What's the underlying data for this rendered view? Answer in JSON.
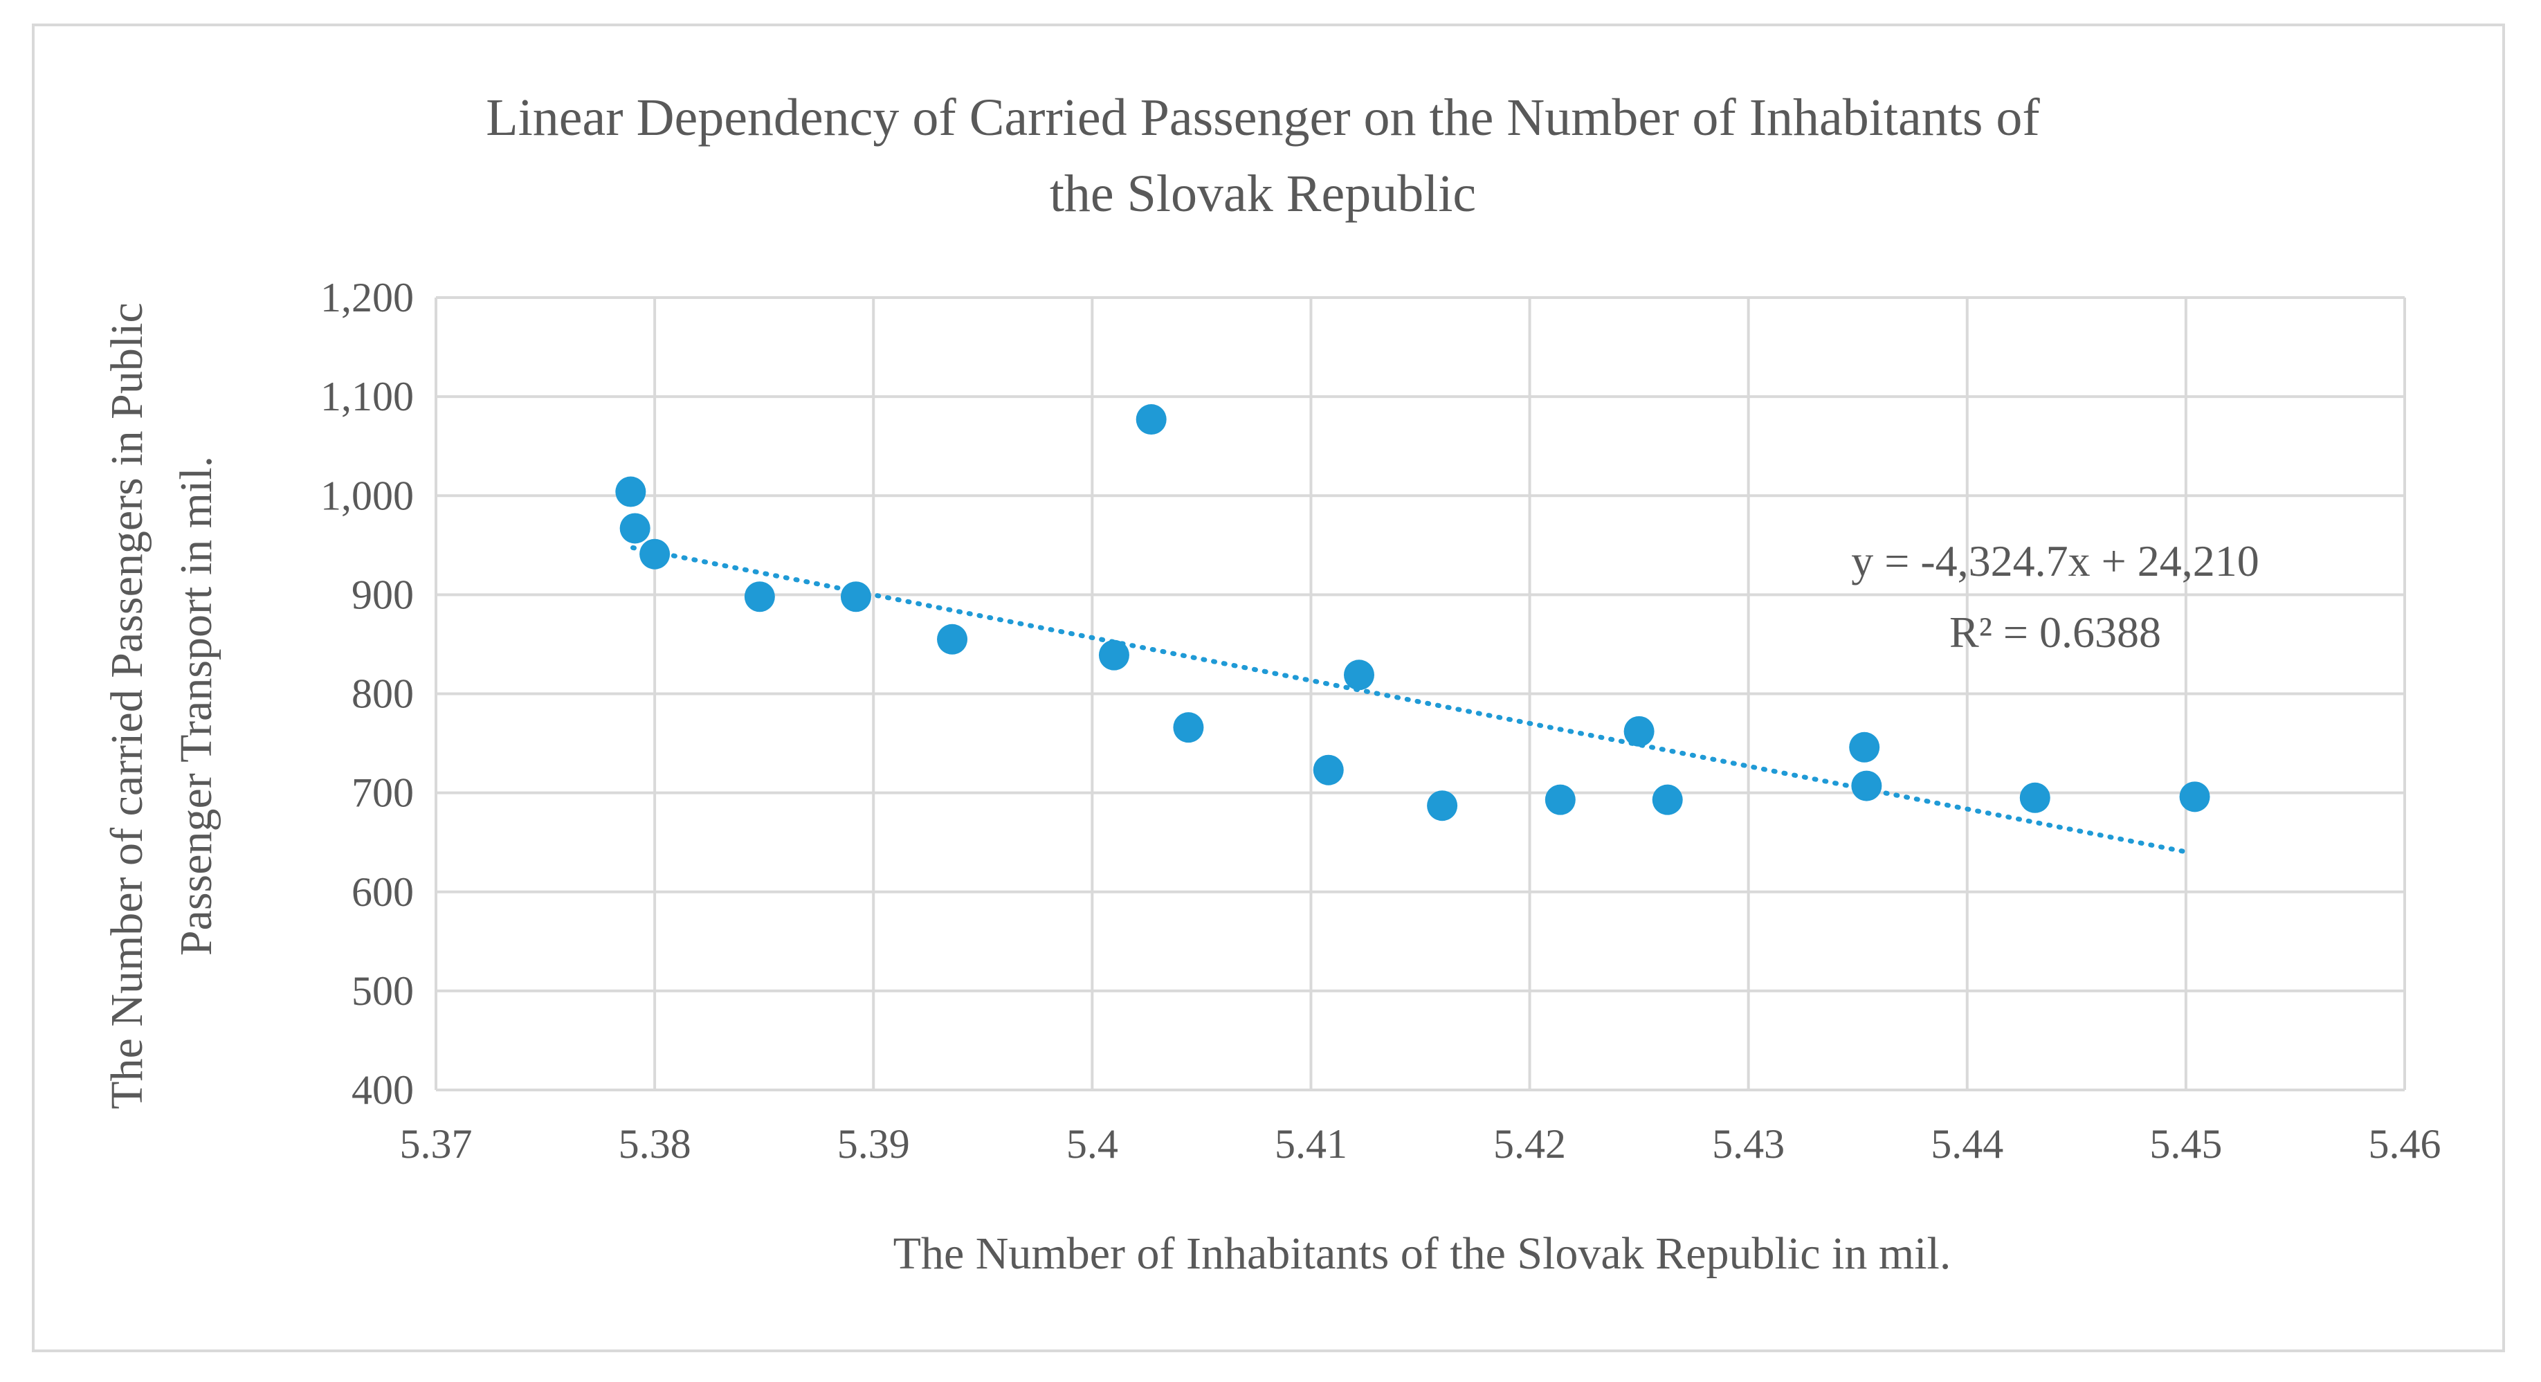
{
  "chart_data": {
    "type": "scatter",
    "title_lines": [
      "Linear Dependency of Carried Passenger on the Number of Inhabitants of",
      "the Slovak Republic"
    ],
    "xlabel": "The Number of Inhabitants of the Slovak Republic in mil.",
    "ylabel_lines": [
      "The Number of carried Passengers in Public",
      "Passenger Transport in mil."
    ],
    "xlim": [
      5.37,
      5.46
    ],
    "ylim": [
      400,
      1200
    ],
    "x_ticks": [
      5.37,
      5.38,
      5.39,
      5.4,
      5.41,
      5.42,
      5.43,
      5.44,
      5.45,
      5.46
    ],
    "x_tick_labels": [
      "5.37",
      "5.38",
      "5.39",
      "5.4",
      "5.41",
      "5.42",
      "5.43",
      "5.44",
      "5.45",
      "5.46"
    ],
    "y_ticks": [
      400,
      500,
      600,
      700,
      800,
      900,
      1000,
      1100,
      1200
    ],
    "y_tick_labels": [
      "400",
      "500",
      "600",
      "700",
      "800",
      "900",
      "1,000",
      "1,100",
      "1,200"
    ],
    "grid": true,
    "series": [
      {
        "name": "Carried passengers",
        "color": "#1f9ad6",
        "points": [
          {
            "x": 5.3789,
            "y": 1004
          },
          {
            "x": 5.3791,
            "y": 967
          },
          {
            "x": 5.38,
            "y": 941
          },
          {
            "x": 5.3848,
            "y": 898
          },
          {
            "x": 5.3892,
            "y": 898
          },
          {
            "x": 5.3936,
            "y": 855
          },
          {
            "x": 5.401,
            "y": 839
          },
          {
            "x": 5.4027,
            "y": 1077
          },
          {
            "x": 5.4044,
            "y": 766
          },
          {
            "x": 5.4108,
            "y": 723
          },
          {
            "x": 5.4122,
            "y": 819
          },
          {
            "x": 5.416,
            "y": 687
          },
          {
            "x": 5.4214,
            "y": 693
          },
          {
            "x": 5.425,
            "y": 762
          },
          {
            "x": 5.4263,
            "y": 693
          },
          {
            "x": 5.4353,
            "y": 746
          },
          {
            "x": 5.4354,
            "y": 707
          },
          {
            "x": 5.4431,
            "y": 695
          },
          {
            "x": 5.4504,
            "y": 696
          }
        ]
      }
    ],
    "trendline": {
      "type": "linear",
      "slope": -4324.7,
      "intercept": 24210,
      "x_range": [
        5.379,
        5.45
      ],
      "color": "#1f9ad6",
      "equation_label": "y = -4,324.7x + 24,210",
      "r2_label": "R² = 0.6388"
    }
  }
}
